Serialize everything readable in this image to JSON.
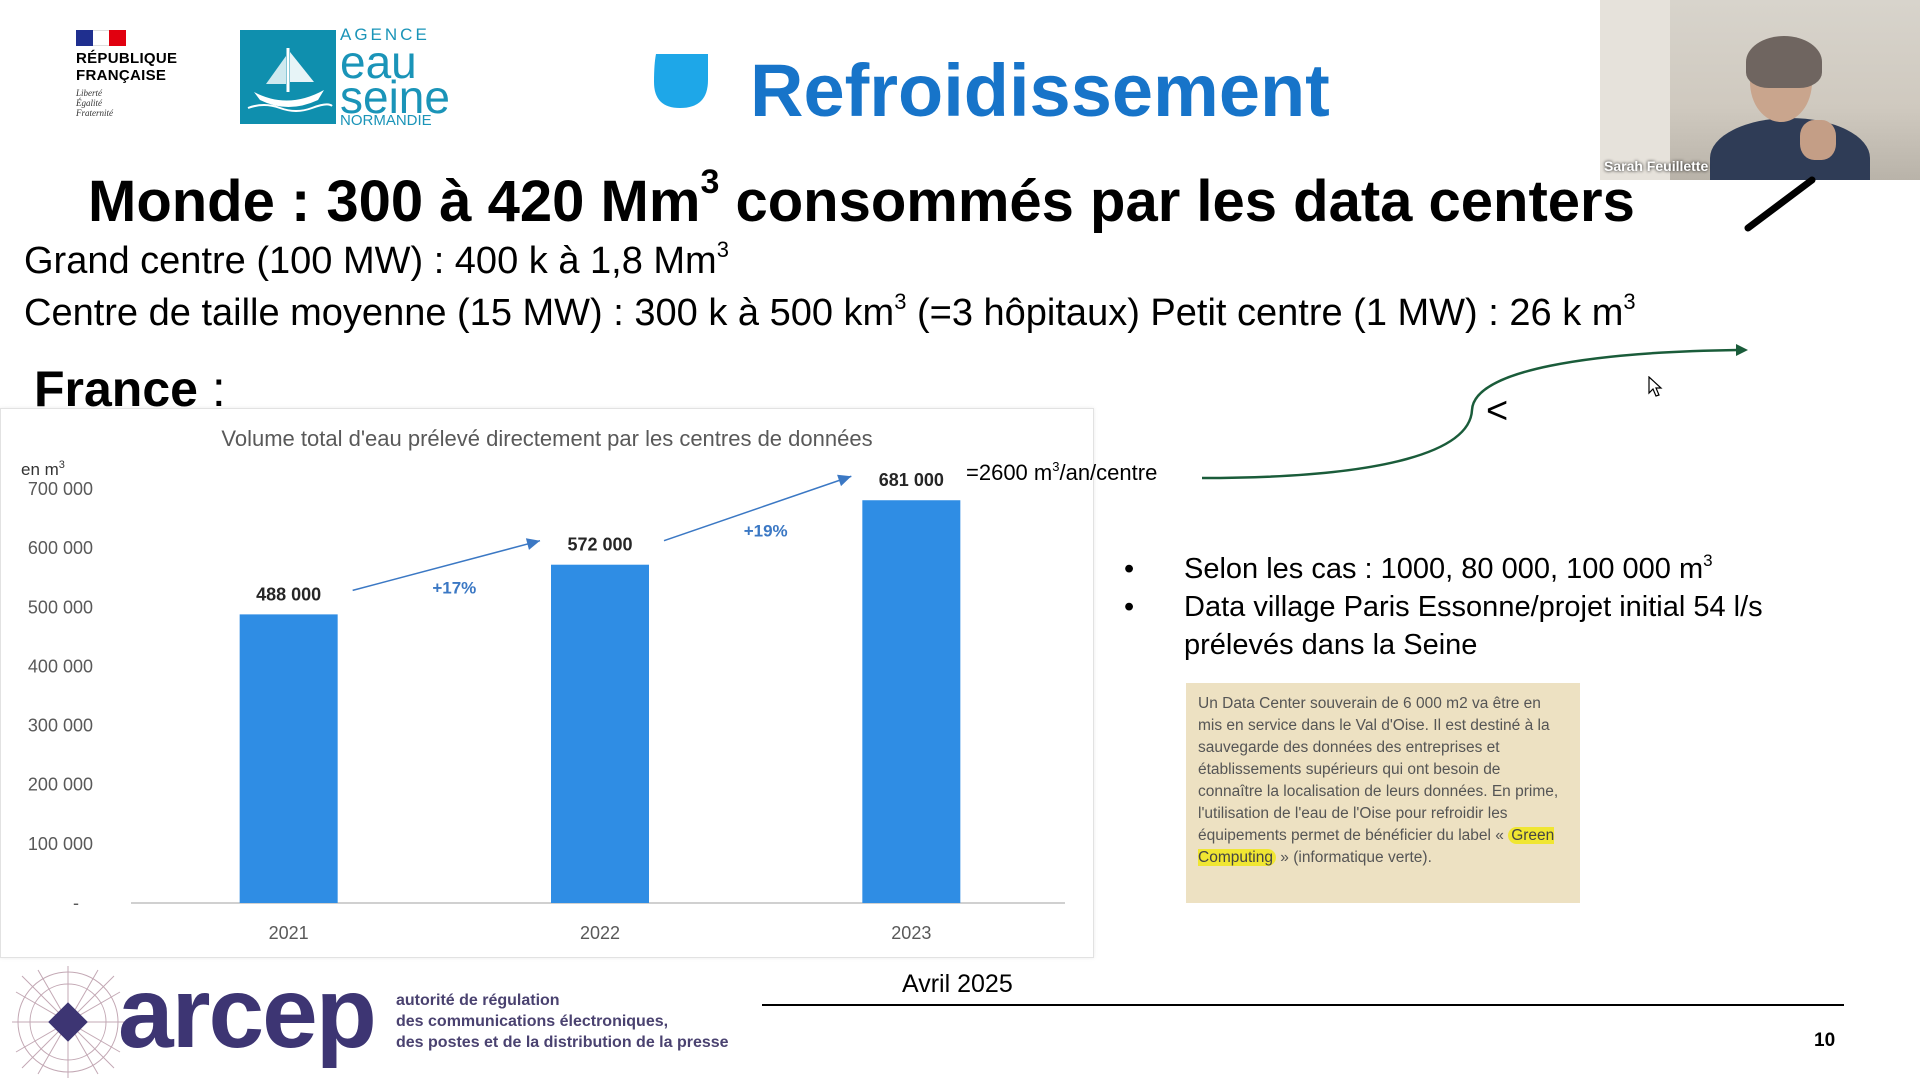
{
  "header": {
    "republic_name_line1": "RÉPUBLIQUE",
    "republic_name_line2": "FRANÇAISE",
    "republic_motto_1": "Liberté",
    "republic_motto_2": "Égalité",
    "republic_motto_3": "Fraternité",
    "agency_line1": "AGENCE",
    "agency_line2": "eau",
    "agency_line3": "seine",
    "agency_line4": "NORMANDIE",
    "title": "Refroidissement",
    "title_color": "#1774c9"
  },
  "webcam": {
    "participant_name": "Sarah Feuillette"
  },
  "content": {
    "world_heading_text": "Monde : 300 à 420 Mm",
    "world_heading_sup": "3",
    "world_heading_tail": " consommés par les data centers",
    "line1_text": "Grand centre (100 MW) : 400 k à 1,8 Mm",
    "line1_sup": "3",
    "line2_a": "Centre de taille moyenne (15 MW) : 300 k à 500 km",
    "line2_sup1": "3",
    "line2_b": " (=3 hôpitaux) Petit centre (1 MW) : 26 k m",
    "line2_sup2": "3",
    "france_heading": "France",
    "france_colon": " :",
    "annotation_text": "=2600 m",
    "annotation_sup": "3",
    "annotation_tail": "/an/centre",
    "less_than": "<",
    "bullet1_text": "Selon les cas : 1000, 80 000, 100 000 m",
    "bullet1_sup": "3",
    "bullet2_line1": "Data village Paris Essonne/projet initial 54 l/s",
    "bullet2_line2": "prélevés dans la Seine",
    "bullet_symbol": "•",
    "clip_before": "Un Data Center souverain de 6 000 m2  va être en mis en service dans le Val d'Oise. Il est destiné à la sauvegarde des données des entreprises et établissements supérieurs qui ont besoin de connaître la localisation de leurs données. En prime, l'utilisation de l'eau de l'Oise pour refroidir les équipements permet de bénéficier du label «",
    "clip_highlight": "Green Computing",
    "clip_after": "» (informatique verte)."
  },
  "chart_data": {
    "type": "bar",
    "title": "Volume total d'eau prélevé directement par les centres de données",
    "ylabel": "en m",
    "ylabel_sup": "3",
    "categories": [
      "2021",
      "2022",
      "2023"
    ],
    "values": [
      488000,
      572000,
      681000
    ],
    "value_labels": [
      "488 000",
      "572 000",
      "681 000"
    ],
    "ylim": [
      0,
      700000
    ],
    "yticks": [
      0,
      100000,
      200000,
      300000,
      400000,
      500000,
      600000,
      700000
    ],
    "ytick_labels": [
      "-",
      "100 000",
      "200 000",
      "300 000",
      "400 000",
      "500 000",
      "600 000",
      "700 000"
    ],
    "growth_labels": [
      "+17%",
      "+19%"
    ],
    "bar_color": "#2f8de4",
    "grid": false
  },
  "footer": {
    "logo_word": "arcep",
    "logo_sub1": "autorité de régulation",
    "logo_sub2": "des communications électroniques,",
    "logo_sub3": "des postes et de la distribution de la presse",
    "date": "Avril 2025",
    "page_number": "10"
  },
  "colors": {
    "accent_blue": "#1774c9",
    "drop_icon": "#1ea7e8",
    "agency_teal": "#0f8fae",
    "arrow_green": "#1a5c3a",
    "arcep_purple": "#3d3573"
  }
}
